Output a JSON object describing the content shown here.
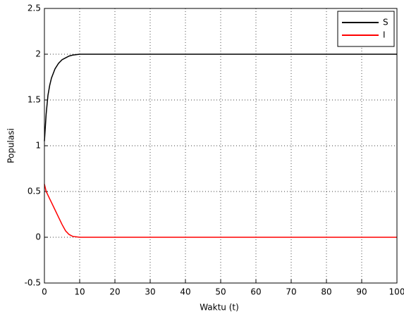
{
  "chart_data": {
    "type": "line",
    "xlabel": "Waktu (t)",
    "ylabel": "Populasi",
    "x": [
      0,
      0.5,
      1,
      1.5,
      2,
      3,
      4,
      5,
      6,
      7,
      8,
      10,
      15,
      20,
      30,
      40,
      50,
      60,
      70,
      80,
      90,
      100
    ],
    "series": [
      {
        "name": "S",
        "color": "#000000",
        "values": [
          1.05,
          1.35,
          1.55,
          1.66,
          1.74,
          1.84,
          1.9,
          1.94,
          1.96,
          1.98,
          1.99,
          2.0,
          2.0,
          2.0,
          2.0,
          2.0,
          2.0,
          2.0,
          2.0,
          2.0,
          2.0,
          2.0
        ]
      },
      {
        "name": "I",
        "color": "#ff0000",
        "values": [
          0.58,
          0.5,
          0.46,
          0.42,
          0.38,
          0.3,
          0.22,
          0.14,
          0.07,
          0.03,
          0.01,
          0.0,
          0.0,
          0.0,
          0.0,
          0.0,
          0.0,
          0.0,
          0.0,
          0.0,
          0.0,
          0.0
        ]
      }
    ],
    "xlim": [
      0,
      100
    ],
    "xticks": [
      0,
      10,
      20,
      30,
      40,
      50,
      60,
      70,
      80,
      90,
      100
    ],
    "ylim": [
      -0.5,
      2.5
    ],
    "yticks": [
      -0.5,
      0,
      0.5,
      1,
      1.5,
      2,
      2.5
    ],
    "grid": true,
    "legend": "top-right"
  }
}
